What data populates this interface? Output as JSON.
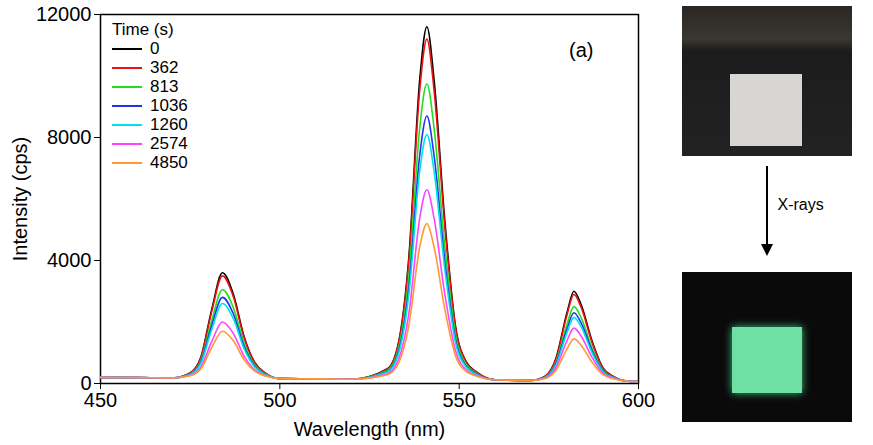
{
  "chart_data": {
    "type": "line",
    "x_label": "Wavelength (nm)",
    "y_label": "Intensity (cps)",
    "legend_title": "Time (s)",
    "legend": "upper left",
    "annotations": [
      "(a)"
    ],
    "xlim": [
      450,
      600
    ],
    "xticks": [
      450,
      500,
      550,
      600
    ],
    "ylim": [
      0,
      12000
    ],
    "yticks": [
      0,
      4000,
      8000,
      12000
    ],
    "grid": false,
    "x": [
      450,
      460,
      470,
      475,
      478,
      481,
      484,
      487,
      490,
      493,
      496,
      500,
      510,
      520,
      530,
      533,
      536,
      539,
      541,
      543,
      546,
      549,
      552,
      555,
      560,
      570,
      574,
      577,
      580,
      582,
      584,
      587,
      590,
      593,
      597,
      600
    ],
    "series": [
      {
        "name": "0",
        "color": "#000000",
        "values": [
          200,
          190,
          180,
          346,
          860,
          2401,
          3600,
          2915,
          1540,
          684,
          336,
          160,
          150,
          140,
          479,
          1282,
          4148,
          9880,
          11600,
          9880,
          5289,
          1850,
          703,
          359,
          120,
          100,
          240,
          821,
          2274,
          3000,
          2564,
          1397,
          526,
          230,
          75,
          60
        ]
      },
      {
        "name": "362",
        "color": "#ee1111",
        "values": [
          200,
          190,
          180,
          341,
          840,
          2336,
          3500,
          2835,
          1500,
          669,
          331,
          160,
          150,
          140,
          467,
          1242,
          4008,
          9540,
          11200,
          9540,
          5109,
          1790,
          683,
          351,
          120,
          100,
          235,
          796,
          2199,
          2900,
          2479,
          1352,
          511,
          225,
          75,
          60
        ]
      },
      {
        "name": "813",
        "color": "#22dd22",
        "values": [
          200,
          190,
          180,
          319,
          750,
          2044,
          3050,
          2475,
          1320,
          601,
          309,
          160,
          150,
          140,
          423,
          1097,
          3500,
          8308,
          9750,
          8308,
          4457,
          1572,
          611,
          322,
          120,
          100,
          215,
          696,
          1899,
          2500,
          2139,
          1172,
          451,
          205,
          75,
          60
        ]
      },
      {
        "name": "1036",
        "color": "#2233ee",
        "values": [
          200,
          190,
          180,
          306,
          700,
          1881,
          2800,
          2275,
          1220,
          564,
          296,
          160,
          150,
          140,
          392,
          992,
          3133,
          7415,
          8700,
          7415,
          3984,
          1415,
          558,
          301,
          120,
          100,
          205,
          646,
          1749,
          2300,
          1969,
          1082,
          421,
          195,
          75,
          60
        ]
      },
      {
        "name": "1260",
        "color": "#00e0ee",
        "values": [
          200,
          190,
          180,
          296,
          660,
          1751,
          2600,
          2115,
          1140,
          534,
          286,
          160,
          150,
          140,
          374,
          932,
          2923,
          6905,
          8100,
          6905,
          3714,
          1325,
          528,
          289,
          120,
          100,
          198,
          609,
          1636,
          2150,
          1842,
          1015,
          398,
          188,
          75,
          60
        ]
      },
      {
        "name": "2574",
        "color": "#ff44ff",
        "values": [
          200,
          190,
          180,
          266,
          540,
          1361,
          2000,
          1635,
          900,
          444,
          256,
          160,
          150,
          140,
          320,
          752,
          2293,
          5375,
          6300,
          5375,
          2904,
          1055,
          438,
          253,
          120,
          100,
          180,
          521,
          1374,
          1800,
          1544,
          857,
          346,
          170,
          75,
          60
        ]
      },
      {
        "name": "4850",
        "color": "#ff9933",
        "values": [
          200,
          190,
          180,
          251,
          480,
          1166,
          1700,
          1395,
          780,
          399,
          241,
          160,
          150,
          140,
          287,
          642,
          1908,
          4440,
          5200,
          4440,
          2409,
          890,
          383,
          231,
          120,
          100,
          163,
          434,
          1111,
          1450,
          1247,
          700,
          293,
          153,
          75,
          60
        ]
      }
    ]
  },
  "side_panel": {
    "arrow_label": "X-rays"
  }
}
